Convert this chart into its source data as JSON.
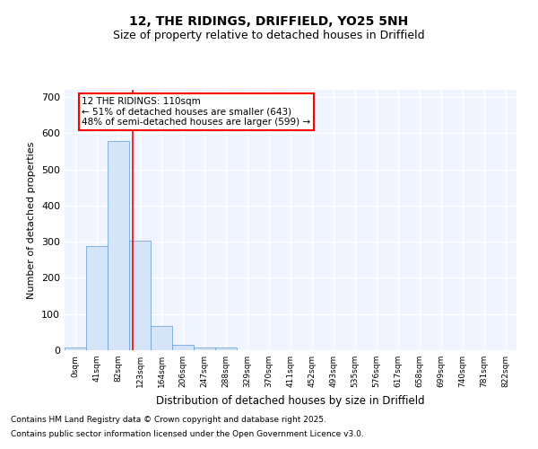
{
  "title1": "12, THE RIDINGS, DRIFFIELD, YO25 5NH",
  "title2": "Size of property relative to detached houses in Driffield",
  "xlabel": "Distribution of detached houses by size in Driffield",
  "ylabel": "Number of detached properties",
  "bar_labels": [
    "0sqm",
    "41sqm",
    "82sqm",
    "123sqm",
    "164sqm",
    "206sqm",
    "247sqm",
    "288sqm",
    "329sqm",
    "370sqm",
    "411sqm",
    "452sqm",
    "493sqm",
    "535sqm",
    "576sqm",
    "617sqm",
    "658sqm",
    "699sqm",
    "740sqm",
    "781sqm",
    "822sqm"
  ],
  "bar_values": [
    8,
    287,
    578,
    302,
    68,
    15,
    8,
    8,
    0,
    0,
    0,
    0,
    0,
    0,
    0,
    0,
    0,
    0,
    0,
    0,
    0
  ],
  "bar_color": "#d6e4f7",
  "bar_edge_color": "#5b9bd5",
  "vline_x": 2.68,
  "vline_color": "red",
  "annotation_text": "12 THE RIDINGS: 110sqm\n← 51% of detached houses are smaller (643)\n48% of semi-detached houses are larger (599) →",
  "annotation_box_color": "white",
  "annotation_box_edge": "red",
  "ylim": [
    0,
    720
  ],
  "yticks": [
    0,
    100,
    200,
    300,
    400,
    500,
    600,
    700
  ],
  "bg_color": "#f0f4ff",
  "grid_color": "white",
  "footnote1": "Contains HM Land Registry data © Crown copyright and database right 2025.",
  "footnote2": "Contains public sector information licensed under the Open Government Licence v3.0."
}
